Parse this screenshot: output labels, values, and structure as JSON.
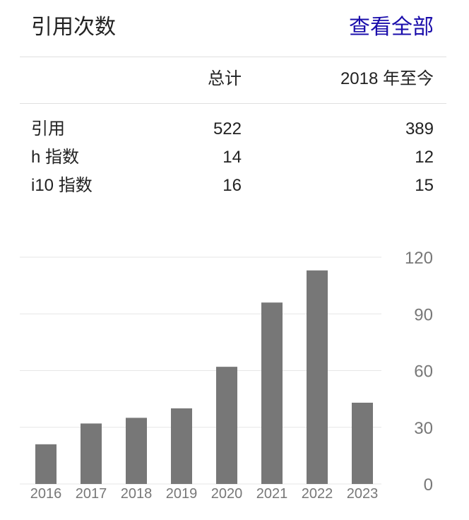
{
  "header": {
    "title": "引用次数",
    "view_all": "查看全部"
  },
  "table": {
    "columns": [
      "总计",
      "2018 年至今"
    ],
    "rows": [
      {
        "label": "引用",
        "total": "522",
        "since": "389"
      },
      {
        "label": "h 指数",
        "total": "14",
        "since": "12"
      },
      {
        "label": "i10 指数",
        "total": "16",
        "since": "15"
      }
    ]
  },
  "colors": {
    "bar": "#777777",
    "link": "#1a0dab",
    "grid": "#e6e6e6"
  },
  "chart_data": {
    "type": "bar",
    "title": "",
    "xlabel": "",
    "ylabel": "",
    "categories": [
      "2016",
      "2017",
      "2018",
      "2019",
      "2020",
      "2021",
      "2022",
      "2023"
    ],
    "values": [
      21,
      32,
      35,
      40,
      62,
      96,
      113,
      43
    ],
    "ylim": [
      0,
      120
    ],
    "yticks": [
      "0",
      "30",
      "60",
      "90",
      "120"
    ],
    "grid": true,
    "y_axis_side": "right"
  }
}
